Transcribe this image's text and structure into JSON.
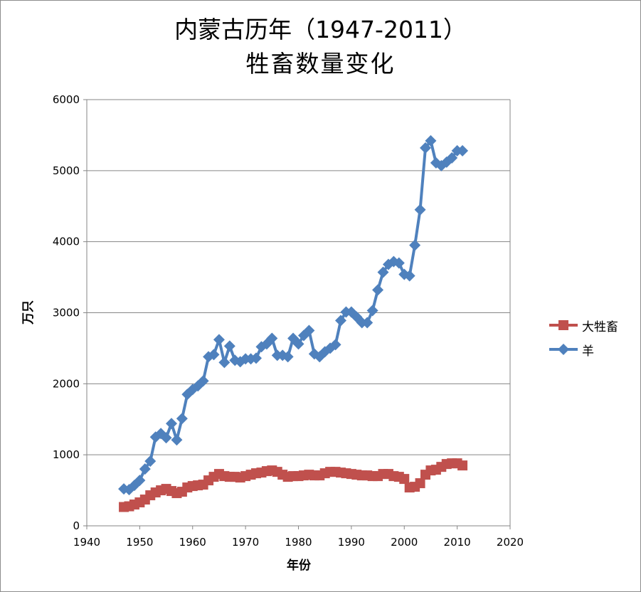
{
  "chart_data": {
    "type": "line",
    "title_line1": "内蒙古历年（1947-2011）",
    "title_line2": "牲畜数量变化",
    "xlabel": "年份",
    "ylabel": "万只",
    "xlim": [
      1940,
      2020
    ],
    "ylim": [
      0,
      6000
    ],
    "xticks": [
      1940,
      1950,
      1960,
      1970,
      1980,
      1990,
      2000,
      2010,
      2020
    ],
    "yticks": [
      0,
      1000,
      2000,
      3000,
      4000,
      5000,
      6000
    ],
    "grid": "horizontal",
    "legend_position": "right",
    "x": [
      1947,
      1948,
      1949,
      1950,
      1951,
      1952,
      1953,
      1954,
      1955,
      1956,
      1957,
      1958,
      1959,
      1960,
      1961,
      1962,
      1963,
      1964,
      1965,
      1966,
      1967,
      1968,
      1969,
      1970,
      1971,
      1972,
      1973,
      1974,
      1975,
      1976,
      1977,
      1978,
      1979,
      1980,
      1981,
      1982,
      1983,
      1984,
      1985,
      1986,
      1987,
      1988,
      1989,
      1990,
      1991,
      1992,
      1993,
      1994,
      1995,
      1996,
      1997,
      1998,
      1999,
      2000,
      2001,
      2002,
      2003,
      2004,
      2005,
      2006,
      2007,
      2008,
      2009,
      2010,
      2011
    ],
    "series": [
      {
        "name": "大牲畜",
        "color": "#c0504d",
        "marker": "square",
        "values": [
          265,
          275,
          300,
          330,
          370,
          430,
          470,
          500,
          520,
          490,
          460,
          480,
          540,
          560,
          570,
          580,
          640,
          690,
          730,
          700,
          690,
          690,
          680,
          700,
          720,
          740,
          750,
          770,
          780,
          760,
          720,
          690,
          700,
          700,
          710,
          720,
          710,
          710,
          740,
          760,
          760,
          750,
          740,
          730,
          720,
          710,
          710,
          700,
          700,
          730,
          730,
          700,
          690,
          660,
          540,
          550,
          600,
          720,
          780,
          790,
          830,
          870,
          880,
          880,
          850
        ]
      },
      {
        "name": "羊",
        "color": "#4f81bd",
        "marker": "diamond",
        "values": [
          520,
          510,
          570,
          640,
          800,
          910,
          1250,
          1300,
          1240,
          1440,
          1210,
          1510,
          1850,
          1920,
          1970,
          2040,
          2380,
          2410,
          2620,
          2300,
          2530,
          2330,
          2310,
          2350,
          2350,
          2360,
          2520,
          2560,
          2640,
          2400,
          2400,
          2380,
          2640,
          2560,
          2680,
          2750,
          2420,
          2380,
          2450,
          2500,
          2550,
          2890,
          3010,
          3010,
          2940,
          2860,
          2860,
          3030,
          3320,
          3570,
          3680,
          3720,
          3700,
          3540,
          3520,
          3950,
          4450,
          5320,
          5420,
          5110,
          5070,
          5120,
          5180,
          5280,
          5280
        ]
      }
    ]
  }
}
